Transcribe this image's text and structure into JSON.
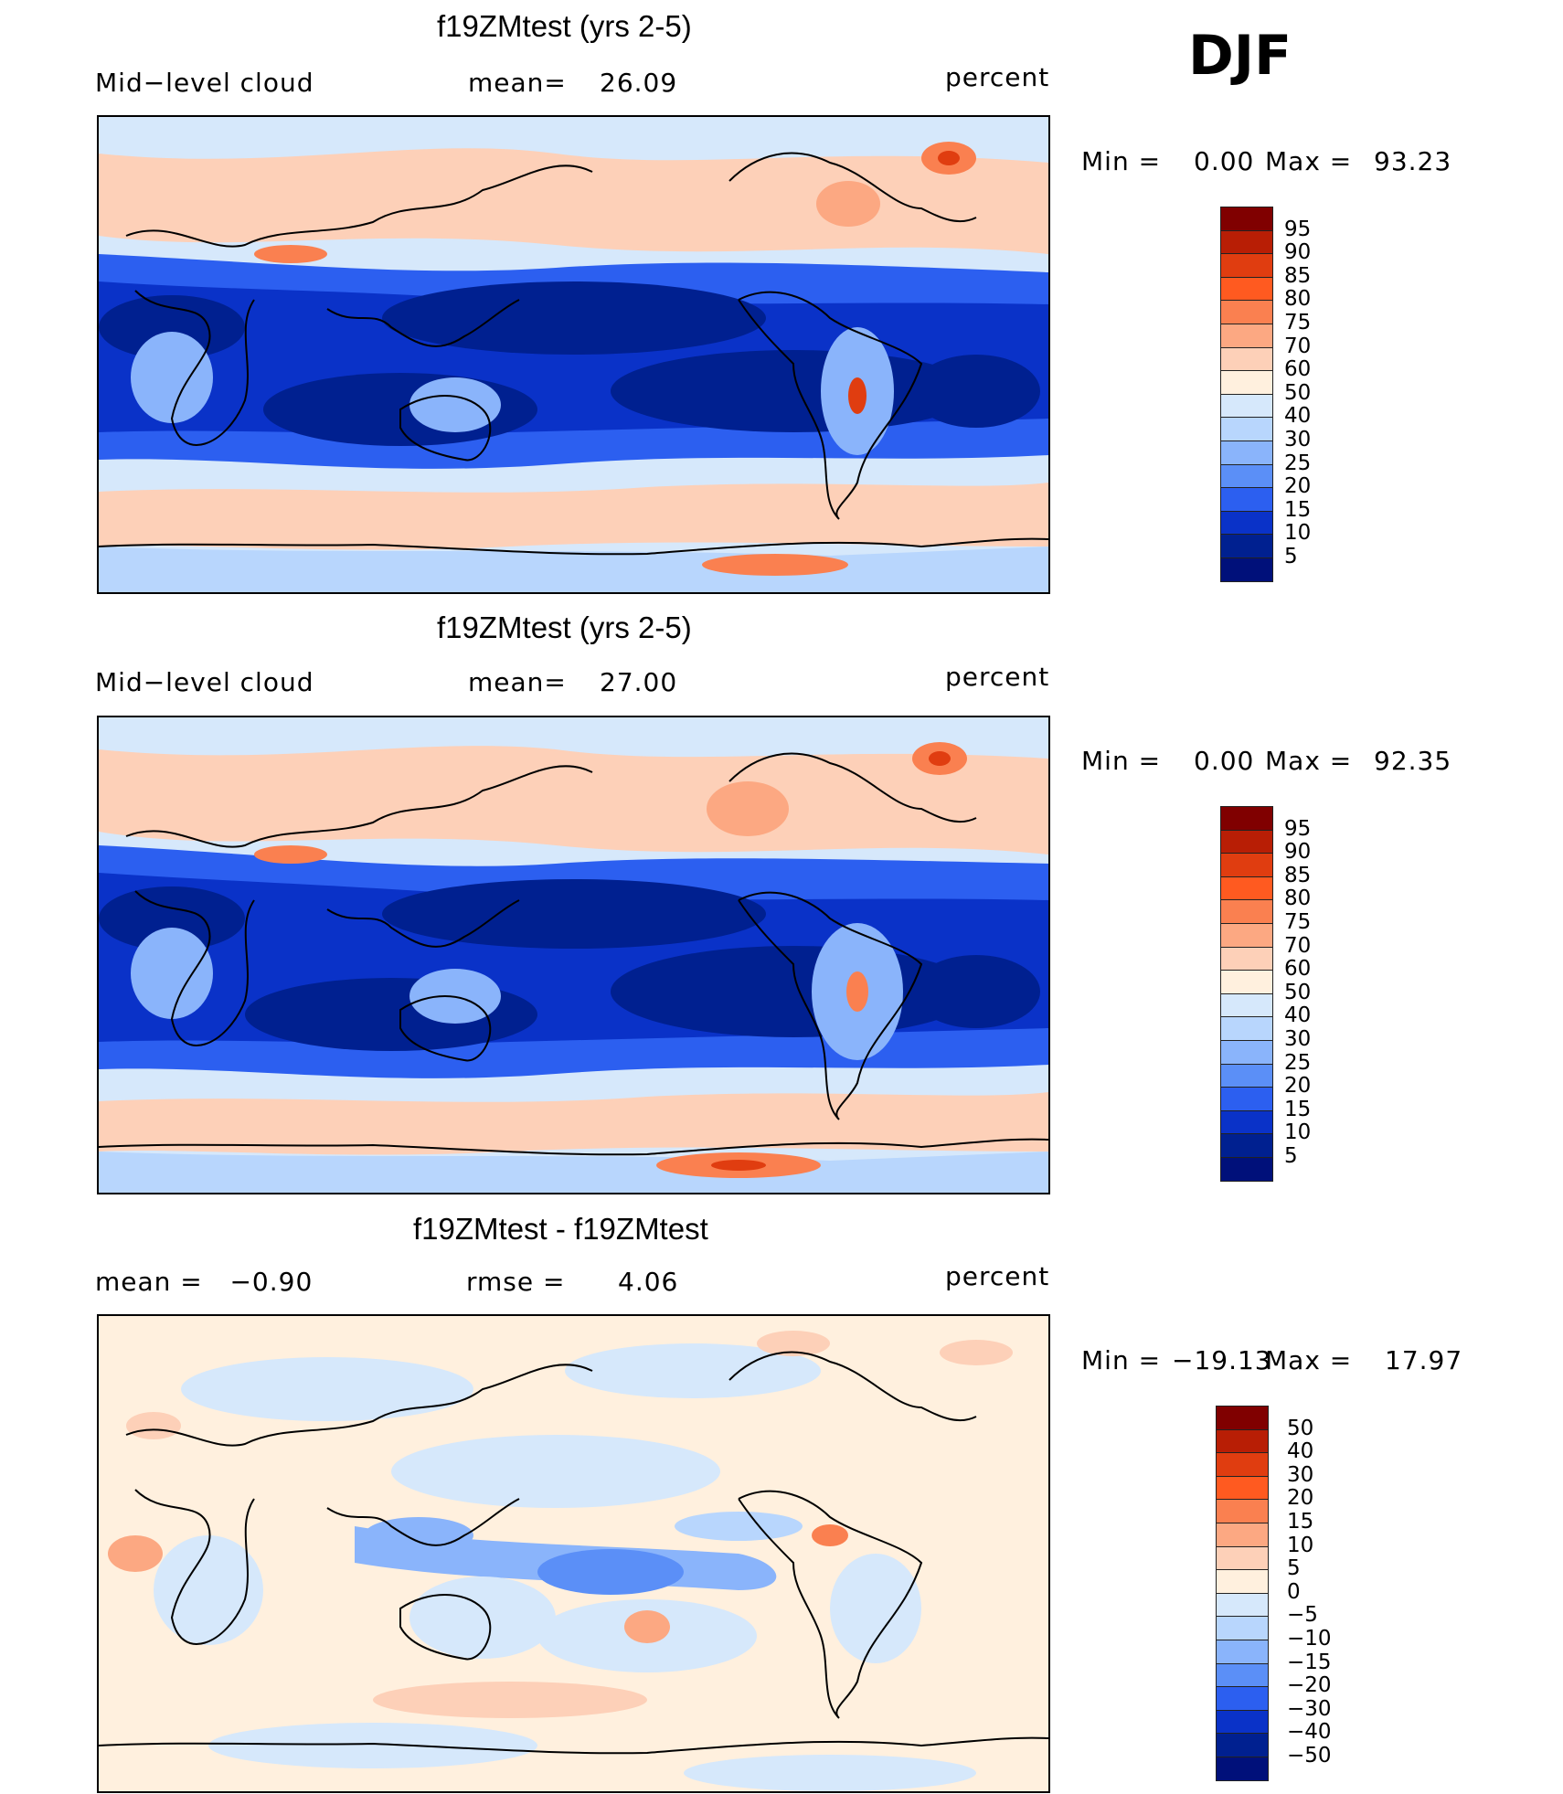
{
  "season": "DJF",
  "panels": [
    {
      "title": "f19ZMtest (yrs 2-5)",
      "left": "Mid−level cloud",
      "center_label": "mean=",
      "center_value": "26.09",
      "right": "percent",
      "min_label": "Min =",
      "min_value": "0.00",
      "max_label": "Max =",
      "max_value": "93.23",
      "colorbar_labels": [
        "95",
        "90",
        "85",
        "80",
        "75",
        "70",
        "60",
        "50",
        "40",
        "30",
        "25",
        "20",
        "15",
        "10",
        "5"
      ],
      "colorbar_colors": [
        "#800000",
        "#b81e05",
        "#e03d10",
        "#ff5a20",
        "#fa8050",
        "#fca882",
        "#fdd0b8",
        "#fff0de",
        "#d6e8fb",
        "#b8d6fd",
        "#8ab4fb",
        "#5b8ff7",
        "#2c5ff0",
        "#0a32c8",
        "#002090",
        "#00107a"
      ]
    },
    {
      "title": "f19ZMtest (yrs 2-5)",
      "left": "Mid−level cloud",
      "center_label": "mean=",
      "center_value": "27.00",
      "right": "percent",
      "min_label": "Min =",
      "min_value": "0.00",
      "max_label": "Max =",
      "max_value": "92.35",
      "colorbar_labels": [
        "95",
        "90",
        "85",
        "80",
        "75",
        "70",
        "60",
        "50",
        "40",
        "30",
        "25",
        "20",
        "15",
        "10",
        "5"
      ],
      "colorbar_colors": [
        "#800000",
        "#b81e05",
        "#e03d10",
        "#ff5a20",
        "#fa8050",
        "#fca882",
        "#fdd0b8",
        "#fff0de",
        "#d6e8fb",
        "#b8d6fd",
        "#8ab4fb",
        "#5b8ff7",
        "#2c5ff0",
        "#0a32c8",
        "#002090",
        "#00107a"
      ]
    },
    {
      "title": "f19ZMtest - f19ZMtest",
      "left": "mean =   −0.90",
      "center_label": "rmse =",
      "center_value": "4.06",
      "right": "percent",
      "min_label": "Min =",
      "min_value": "−19.13",
      "max_label": "Max =",
      "max_value": "17.97",
      "colorbar_labels": [
        "50",
        "40",
        "30",
        "20",
        "15",
        "10",
        "5",
        "0",
        "−5",
        "−10",
        "−15",
        "−20",
        "−30",
        "−40",
        "−50"
      ],
      "colorbar_colors": [
        "#800000",
        "#b81e05",
        "#e03d10",
        "#ff5a20",
        "#fa8050",
        "#fca882",
        "#fdd0b8",
        "#fff0de",
        "#d6e8fb",
        "#b8d6fd",
        "#8ab4fb",
        "#5b8ff7",
        "#2c5ff0",
        "#0a32c8",
        "#002090",
        "#00107a"
      ]
    }
  ]
}
